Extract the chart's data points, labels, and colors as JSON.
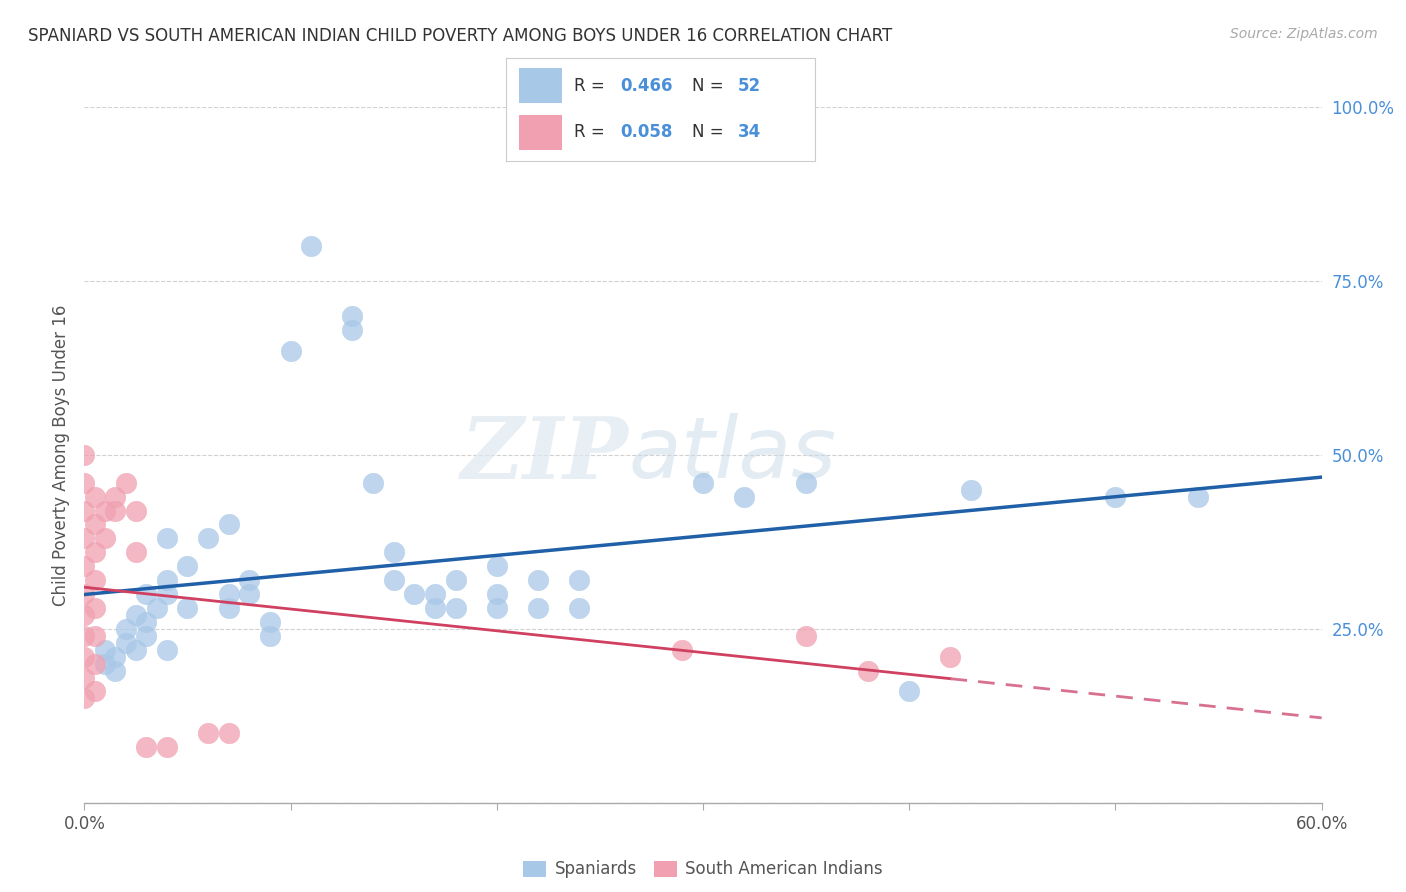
{
  "title": "SPANIARD VS SOUTH AMERICAN INDIAN CHILD POVERTY AMONG BOYS UNDER 16 CORRELATION CHART",
  "source": "Source: ZipAtlas.com",
  "ylabel": "Child Poverty Among Boys Under 16",
  "x_min": 0.0,
  "x_max": 0.6,
  "y_min": 0.0,
  "y_max": 1.0,
  "blue_R": 0.466,
  "blue_N": 52,
  "pink_R": 0.058,
  "pink_N": 34,
  "blue_color": "#a8c8e8",
  "blue_line_color": "#2060a8",
  "pink_color": "#f0a0b0",
  "pink_line_color": "#d04060",
  "pink_line_dashed_color": "#d87090",
  "blue_scatter": [
    [
      0.01,
      0.2
    ],
    [
      0.01,
      0.22
    ],
    [
      0.015,
      0.19
    ],
    [
      0.015,
      0.21
    ],
    [
      0.02,
      0.23
    ],
    [
      0.02,
      0.25
    ],
    [
      0.025,
      0.27
    ],
    [
      0.025,
      0.22
    ],
    [
      0.03,
      0.3
    ],
    [
      0.03,
      0.26
    ],
    [
      0.03,
      0.24
    ],
    [
      0.035,
      0.28
    ],
    [
      0.04,
      0.38
    ],
    [
      0.04,
      0.32
    ],
    [
      0.04,
      0.3
    ],
    [
      0.04,
      0.22
    ],
    [
      0.05,
      0.34
    ],
    [
      0.05,
      0.28
    ],
    [
      0.06,
      0.38
    ],
    [
      0.07,
      0.4
    ],
    [
      0.07,
      0.3
    ],
    [
      0.07,
      0.28
    ],
    [
      0.08,
      0.32
    ],
    [
      0.08,
      0.3
    ],
    [
      0.09,
      0.26
    ],
    [
      0.09,
      0.24
    ],
    [
      0.1,
      0.65
    ],
    [
      0.11,
      0.8
    ],
    [
      0.13,
      0.7
    ],
    [
      0.13,
      0.68
    ],
    [
      0.14,
      0.46
    ],
    [
      0.15,
      0.36
    ],
    [
      0.15,
      0.32
    ],
    [
      0.16,
      0.3
    ],
    [
      0.17,
      0.28
    ],
    [
      0.17,
      0.3
    ],
    [
      0.18,
      0.32
    ],
    [
      0.18,
      0.28
    ],
    [
      0.2,
      0.34
    ],
    [
      0.2,
      0.3
    ],
    [
      0.2,
      0.28
    ],
    [
      0.22,
      0.32
    ],
    [
      0.22,
      0.28
    ],
    [
      0.24,
      0.32
    ],
    [
      0.24,
      0.28
    ],
    [
      0.3,
      0.46
    ],
    [
      0.32,
      0.44
    ],
    [
      0.35,
      0.46
    ],
    [
      0.4,
      0.16
    ],
    [
      0.43,
      0.45
    ],
    [
      0.5,
      0.44
    ],
    [
      0.54,
      0.44
    ]
  ],
  "pink_scatter": [
    [
      0.0,
      0.5
    ],
    [
      0.0,
      0.46
    ],
    [
      0.0,
      0.42
    ],
    [
      0.0,
      0.38
    ],
    [
      0.0,
      0.34
    ],
    [
      0.0,
      0.3
    ],
    [
      0.0,
      0.27
    ],
    [
      0.0,
      0.24
    ],
    [
      0.0,
      0.21
    ],
    [
      0.0,
      0.18
    ],
    [
      0.0,
      0.15
    ],
    [
      0.005,
      0.44
    ],
    [
      0.005,
      0.4
    ],
    [
      0.005,
      0.36
    ],
    [
      0.005,
      0.32
    ],
    [
      0.005,
      0.28
    ],
    [
      0.005,
      0.24
    ],
    [
      0.005,
      0.2
    ],
    [
      0.005,
      0.16
    ],
    [
      0.01,
      0.42
    ],
    [
      0.01,
      0.38
    ],
    [
      0.015,
      0.44
    ],
    [
      0.015,
      0.42
    ],
    [
      0.02,
      0.46
    ],
    [
      0.025,
      0.42
    ],
    [
      0.025,
      0.36
    ],
    [
      0.03,
      0.08
    ],
    [
      0.04,
      0.08
    ],
    [
      0.06,
      0.1
    ],
    [
      0.07,
      0.1
    ],
    [
      0.29,
      0.22
    ],
    [
      0.35,
      0.24
    ],
    [
      0.38,
      0.19
    ],
    [
      0.42,
      0.21
    ]
  ],
  "watermark_zip": "ZIP",
  "watermark_atlas": "atlas",
  "legend_blue_label": "Spaniards",
  "legend_pink_label": "South American Indians",
  "background_color": "#ffffff",
  "grid_color": "#cccccc"
}
